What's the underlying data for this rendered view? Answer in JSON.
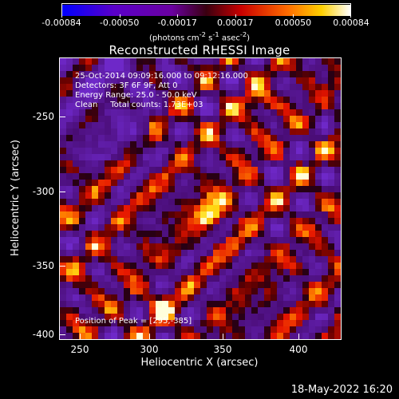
{
  "colorbar": {
    "labels": [
      "-0.00084",
      "-0.00050",
      "-0.00017",
      "0.00017",
      "0.00050",
      "0.00084"
    ],
    "units_main": "(photons cm",
    "units_exp1": "-2",
    "units_s": " s",
    "units_exp2": "-1",
    "units_asec": " asec",
    "units_exp3": "-2",
    "units_close": ")"
  },
  "title": "Reconstructed RHESSI Image",
  "info": {
    "time": "25-Oct-2014 09:09:16.000 to 09:12:16.000",
    "detectors": "Detectors: 3F 6F 9F, Att 0",
    "energy": "Energy Range: 25.0 - 50.0 keV",
    "clean": "Clean     Total counts: 1.73E+03"
  },
  "peak_label": "Position of Peak = [295,-385]",
  "axes": {
    "xlabel": "Heliocentric X (arcsec)",
    "ylabel": "Heliocentric Y (arcsec)",
    "xticks": [
      "250",
      "300",
      "350",
      "400"
    ],
    "yticks": [
      "-250",
      "-300",
      "-350",
      "-400"
    ]
  },
  "timestamp": "18-May-2022 16:20",
  "colors": {
    "background": "#000000",
    "text": "#ffffff"
  }
}
